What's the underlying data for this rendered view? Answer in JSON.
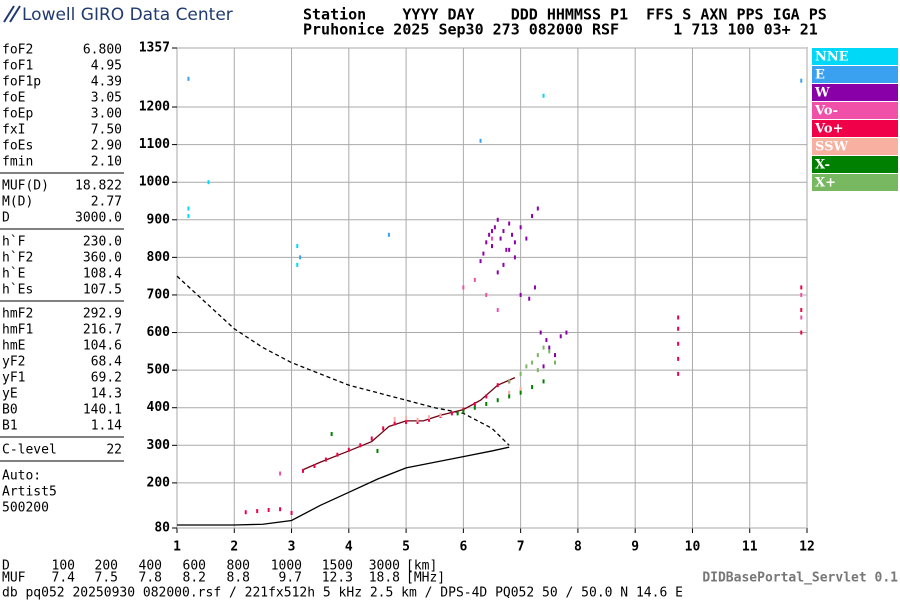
{
  "header": {
    "brand": "Lowell GIRO Data Center",
    "line1": "Station    YYYY DAY    DDD HHMMSS P1  FFS S AXN PPS IGA PS",
    "line2": "Pruhonice 2025 Sep30 273 082000 RSF      1 713 100 03+ 21"
  },
  "params": [
    [
      {
        "label": "foF2",
        "value": "6.800"
      },
      {
        "label": "foF1",
        "value": "4.95"
      },
      {
        "label": "foF1p",
        "value": "4.39"
      },
      {
        "label": "foE",
        "value": "3.05"
      },
      {
        "label": "foEp",
        "value": "3.00"
      },
      {
        "label": "fxI",
        "value": "7.50"
      },
      {
        "label": "foEs",
        "value": "2.90"
      },
      {
        "label": "fmin",
        "value": "2.10"
      }
    ],
    [
      {
        "label": "MUF(D)",
        "value": "18.822"
      },
      {
        "label": "M(D)",
        "value": "2.77"
      },
      {
        "label": "D",
        "value": "3000.0"
      }
    ],
    [
      {
        "label": "h`F",
        "value": "230.0"
      },
      {
        "label": "h`F2",
        "value": "360.0"
      },
      {
        "label": "h`E",
        "value": "108.4"
      },
      {
        "label": "h`Es",
        "value": "107.5"
      }
    ],
    [
      {
        "label": "hmF2",
        "value": "292.9"
      },
      {
        "label": "hmF1",
        "value": "216.7"
      },
      {
        "label": "hmE",
        "value": "104.6"
      },
      {
        "label": "yF2",
        "value": "68.4"
      },
      {
        "label": "yF1",
        "value": "69.2"
      },
      {
        "label": "yE",
        "value": "14.3"
      },
      {
        "label": "B0",
        "value": "140.1"
      },
      {
        "label": "B1",
        "value": "1.14"
      }
    ],
    [
      {
        "label": "C-level",
        "value": "22"
      }
    ]
  ],
  "auto": [
    "Auto:",
    "Artist5",
    "500200"
  ],
  "muf_table": {
    "d_label": "D",
    "d_values": [
      100,
      200,
      400,
      600,
      800,
      1000,
      1500,
      3000
    ],
    "d_unit": "[km]",
    "muf_label": "MUF",
    "muf_values": [
      7.4,
      7.5,
      7.8,
      8.2,
      8.8,
      9.7,
      12.3,
      18.8
    ],
    "muf_unit": "[MHz]"
  },
  "footer": "db pq052 20250930 082000.rsf / 221fx512h 5 kHz 2.5 km / DPS-4D PQ052 50 / 50.0 N 14.6 E",
  "servlet": "DIDBasePortal_Servlet 0.1",
  "chart_data": {
    "type": "scatter",
    "grid": true,
    "xlim": [
      1,
      12
    ],
    "xticks": [
      1,
      2,
      3,
      4,
      5,
      6,
      7,
      8,
      9,
      10,
      11,
      12
    ],
    "ylim": [
      80,
      1357
    ],
    "yticks": [
      80,
      200,
      300,
      400,
      500,
      600,
      700,
      800,
      900,
      1000,
      1100,
      1200,
      1357
    ],
    "series": [
      {
        "name": "NNE",
        "color": "#00d8f8",
        "x": [
          1.2,
          1.2,
          3.1,
          3.1,
          1.55,
          7.4
        ],
        "values": [
          910,
          930,
          830,
          780,
          1000,
          1230
        ]
      },
      {
        "name": "E",
        "color": "#3aa0f0",
        "x": [
          3.15,
          4.7,
          11.9,
          6.3,
          1.2
        ],
        "values": [
          800,
          860,
          1270,
          1110,
          1275
        ]
      },
      {
        "name": "W",
        "color": "#8a00a8",
        "x": [
          6.3,
          6.35,
          6.4,
          6.45,
          6.5,
          6.55,
          6.6,
          6.65,
          6.7,
          6.75,
          6.8,
          6.85,
          6.9,
          7.0,
          7.1,
          7.2,
          7.3,
          6.6,
          6.7,
          6.9,
          7.0,
          7.15,
          7.25,
          7.35,
          7.45,
          7.5,
          7.6,
          7.7,
          7.4,
          7.8,
          6.5,
          6.8
        ],
        "values": [
          790,
          810,
          840,
          860,
          830,
          880,
          900,
          850,
          870,
          820,
          890,
          860,
          840,
          880,
          850,
          910,
          930,
          760,
          780,
          800,
          700,
          690,
          720,
          600,
          580,
          560,
          540,
          590,
          510,
          600,
          870,
          820
        ]
      },
      {
        "name": "Vo-",
        "color": "#f050a8",
        "x": [
          6.0,
          6.2,
          6.4,
          6.6,
          11.9,
          11.9,
          2.8,
          6.5
        ],
        "values": [
          720,
          740,
          700,
          660,
          640,
          700,
          225,
          850
        ]
      },
      {
        "name": "Vo+",
        "color": "#f00048",
        "x": [
          2.2,
          2.4,
          2.6,
          2.8,
          3.0,
          3.2,
          3.4,
          3.6,
          3.8,
          4.0,
          4.2,
          4.4,
          4.6,
          4.8,
          5.0,
          5.2,
          5.4,
          5.6,
          5.8,
          6.0,
          6.2,
          6.4,
          6.6,
          6.8,
          9.75,
          9.75,
          9.75,
          9.75,
          9.75,
          11.9,
          11.9,
          11.9
        ],
        "values": [
          122,
          125,
          128,
          130,
          120,
          232,
          245,
          262,
          275,
          288,
          300,
          318,
          345,
          358,
          362,
          362,
          368,
          378,
          385,
          395,
          410,
          430,
          460,
          470,
          490,
          530,
          570,
          610,
          640,
          600,
          660,
          720
        ]
      },
      {
        "name": "SSW",
        "color": "#f8b0a0",
        "x": [
          4.8,
          5.0,
          5.2,
          5.4,
          5.6,
          6.8,
          7.0
        ],
        "values": [
          370,
          372,
          368,
          375,
          380,
          440,
          450
        ]
      },
      {
        "name": "X-",
        "color": "#008000",
        "x": [
          5.9,
          6.0,
          6.2,
          6.4,
          6.6,
          6.8,
          7.0,
          7.2,
          7.4,
          4.5,
          3.7
        ],
        "values": [
          385,
          390,
          400,
          410,
          420,
          430,
          440,
          455,
          470,
          285,
          330
        ]
      },
      {
        "name": "X+",
        "color": "#78b860",
        "x": [
          6.8,
          7.0,
          7.1,
          7.2,
          7.3,
          7.4,
          7.5,
          7.6,
          7.3
        ],
        "values": [
          470,
          490,
          510,
          520,
          540,
          560,
          550,
          520,
          500
        ]
      }
    ],
    "lines": [
      {
        "color": "#000000",
        "dashed": true,
        "x": [
          1,
          1.5,
          2,
          2.5,
          3,
          3.5,
          4,
          4.5,
          5,
          5.5,
          6,
          6.5,
          6.8
        ],
        "values": [
          750,
          680,
          610,
          560,
          520,
          490,
          460,
          440,
          420,
          400,
          385,
          345,
          300
        ]
      },
      {
        "color": "#000000",
        "dashed": false,
        "x": [
          1,
          2,
          2.5,
          3,
          3.5,
          4,
          4.5,
          5,
          5.5,
          6,
          6.5,
          6.8
        ],
        "values": [
          88,
          88,
          90,
          100,
          140,
          175,
          210,
          240,
          255,
          270,
          285,
          295
        ]
      },
      {
        "color": "#700010",
        "dashed": false,
        "x": [
          3.2,
          3.5,
          4,
          4.4,
          4.7,
          5,
          5.3,
          5.6,
          6,
          6.3,
          6.6,
          6.9
        ],
        "values": [
          235,
          255,
          285,
          310,
          350,
          365,
          365,
          380,
          395,
          420,
          460,
          480
        ]
      }
    ]
  }
}
